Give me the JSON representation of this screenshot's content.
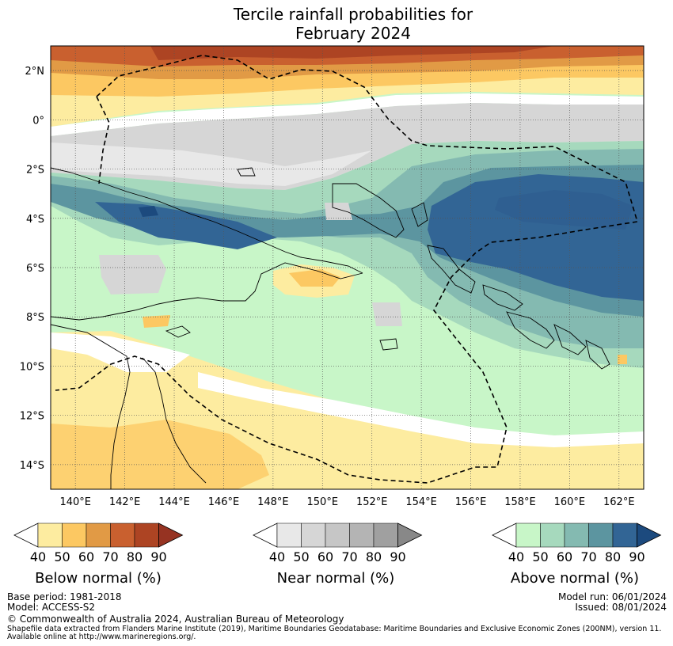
{
  "title": {
    "line1": "Tercile rainfall probabilities for",
    "line2": "February 2024"
  },
  "map": {
    "lat_labels": [
      "2°N",
      "0°",
      "2°S",
      "4°S",
      "6°S",
      "8°S",
      "10°S",
      "12°S",
      "14°S"
    ],
    "lon_labels": [
      "140°E",
      "142°E",
      "144°E",
      "146°E",
      "148°E",
      "150°E",
      "152°E",
      "154°E",
      "156°E",
      "158°E",
      "160°E",
      "162°E"
    ],
    "lat_range": [
      -15,
      3
    ],
    "lon_range": [
      139,
      163
    ]
  },
  "colorbars": [
    {
      "label": "Below normal (%)",
      "ticks": [
        "40",
        "50",
        "60",
        "70",
        "80",
        "90"
      ],
      "colors": [
        "#fdeca0",
        "#fcc862",
        "#e19a45",
        "#c9602f",
        "#ad4423",
        "#963322"
      ]
    },
    {
      "label": "Near normal (%)",
      "ticks": [
        "40",
        "50",
        "60",
        "70",
        "80",
        "90"
      ],
      "colors": [
        "#e8e8e8",
        "#d6d6d6",
        "#c6c6c6",
        "#b4b4b4",
        "#a0a0a0",
        "#888888"
      ]
    },
    {
      "label": "Above normal (%)",
      "ticks": [
        "40",
        "50",
        "60",
        "70",
        "80",
        "90"
      ],
      "colors": [
        "#c8f6c8",
        "#a6d9bd",
        "#84bab1",
        "#5c95a0",
        "#326595",
        "#1c4a7e"
      ]
    }
  ],
  "footer": {
    "base_period": "Base period: 1981-2018",
    "model": "Model: ACCESS-S2",
    "model_run": "Model run: 06/01/2024",
    "issued": "Issued: 08/01/2024",
    "copyright": "© Commonwealth of Australia 2024, Australian Bureau of Meteorology",
    "shapefile_line1": "Shapefile data extracted from Flanders Marine Institute (2019), Maritime Boundaries Geodatabase: Maritime Boundaries and Exclusive Economic Zones (200NM), version 11.",
    "shapefile_line2": "Available online at http://www.marineregions.org/."
  },
  "colors": {
    "white_band": "#ffffff",
    "frame": "#000000",
    "grid": "#555555"
  }
}
